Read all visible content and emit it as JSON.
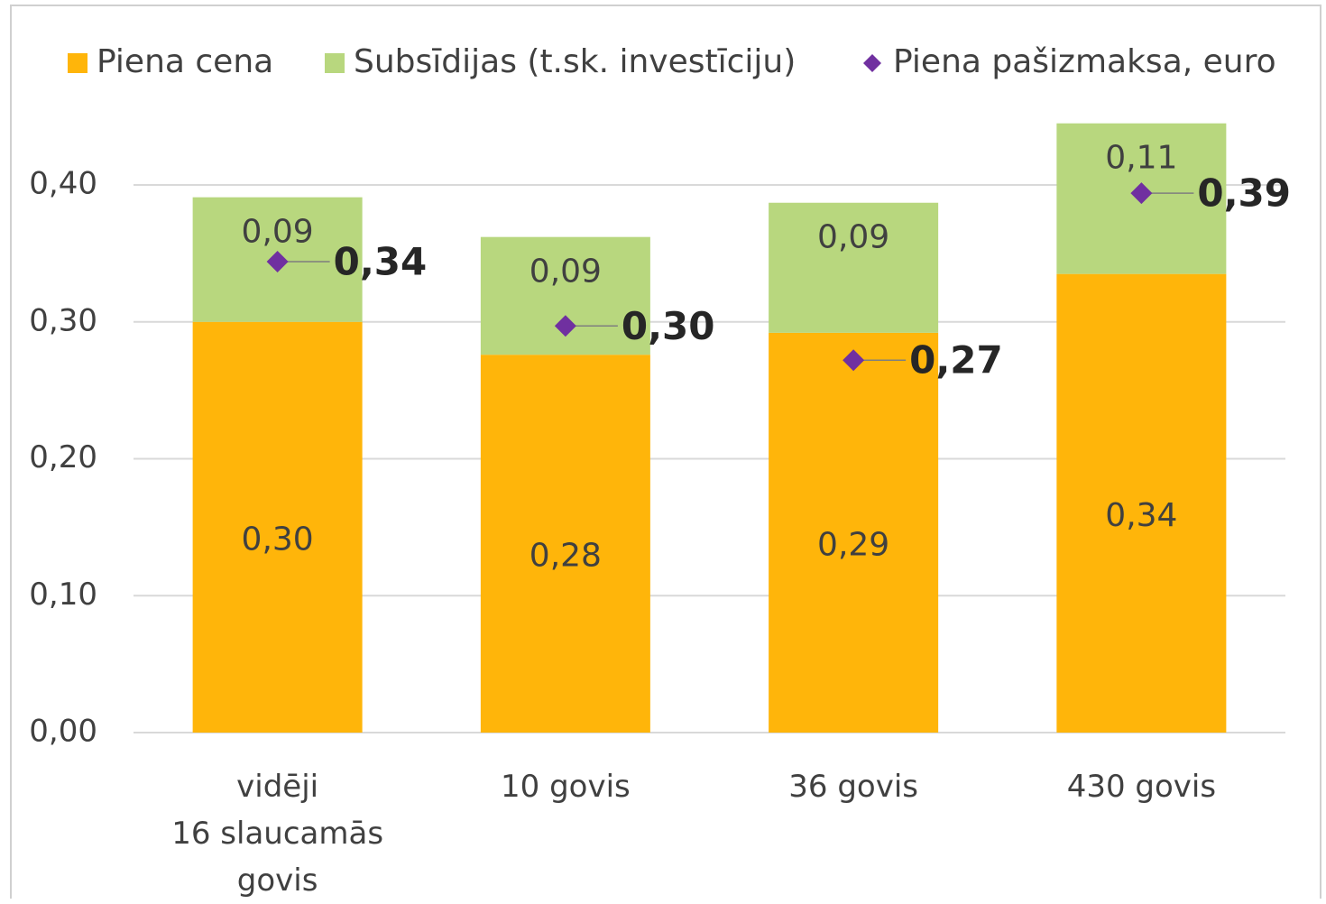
{
  "chart_data": {
    "type": "bar",
    "stacked": true,
    "categories": [
      "vidēji\n16 slaucamās\ngovis",
      "10 govis",
      "36 govis",
      "430 govis"
    ],
    "series": [
      {
        "name": "Piena cena",
        "type": "bar",
        "color": "#FFB50A",
        "values": [
          0.3,
          0.276,
          0.292,
          0.335
        ],
        "value_labels": [
          "0,30",
          "0,28",
          "0,29",
          "0,34"
        ]
      },
      {
        "name": "Subsīdijas (t.sk. investīciju)",
        "type": "bar",
        "color": "#B8D77E",
        "values": [
          0.091,
          0.086,
          0.095,
          0.11
        ],
        "value_labels": [
          "0,09",
          "0,09",
          "0,09",
          "0,11"
        ]
      },
      {
        "name": "Piena pašizmaksa, euro",
        "type": "scatter",
        "color": "#7030A0",
        "values": [
          0.344,
          0.297,
          0.272,
          0.394
        ],
        "value_labels": [
          "0,34",
          "0,30",
          "0,27",
          "0,39"
        ]
      }
    ],
    "ylim": [
      0,
      0.45
    ],
    "yticks": [
      {
        "value": 0,
        "label": "0,00"
      },
      {
        "value": 0.1,
        "label": "0,10"
      },
      {
        "value": 0.2,
        "label": "0,20"
      },
      {
        "value": 0.3,
        "label": "0,30"
      },
      {
        "value": 0.4,
        "label": "0,40"
      }
    ],
    "grid": true,
    "legend": "top"
  }
}
